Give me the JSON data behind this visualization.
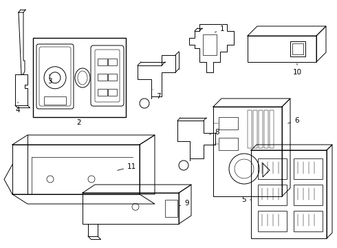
{
  "background_color": "#ffffff",
  "line_color": "#000000",
  "figsize": [
    4.9,
    3.6
  ],
  "dpi": 100,
  "label_fs": 7.5,
  "lw": 0.7
}
